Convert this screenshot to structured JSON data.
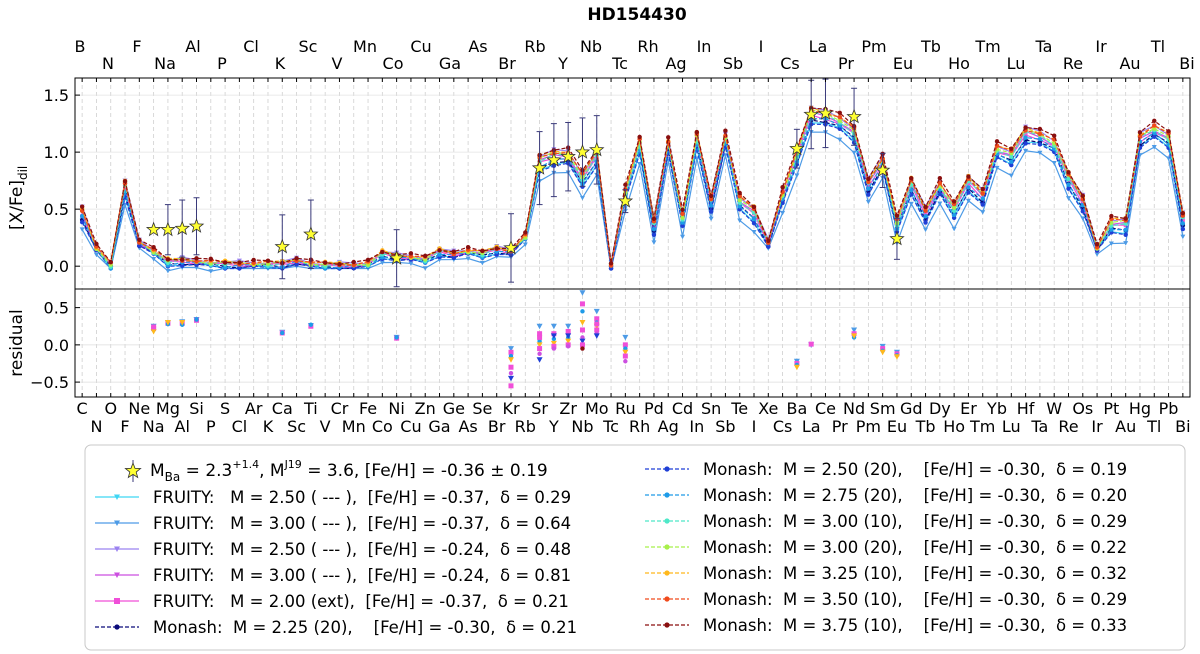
{
  "chart_data": {
    "type": "line",
    "title": "HD154430",
    "top_panel": {
      "ylabel_main": "[X/Fe]",
      "ylabel_sub": "dil",
      "ylim": [
        -0.2,
        1.65
      ],
      "yticks": [
        "0.0",
        "0.5",
        "1.0",
        "1.5"
      ]
    },
    "bottom_panel": {
      "ylabel": "residual",
      "ylim": [
        -0.7,
        0.75
      ],
      "yticks": [
        "−0.5",
        "0.0",
        "0.5"
      ]
    },
    "elements": [
      "C",
      "N",
      "O",
      "F",
      "Ne",
      "Na",
      "Mg",
      "Al",
      "Si",
      "P",
      "S",
      "Cl",
      "Ar",
      "K",
      "Ca",
      "Sc",
      "Ti",
      "V",
      "Cr",
      "Mn",
      "Fe",
      "Co",
      "Ni",
      "Cu",
      "Zn",
      "Ga",
      "Ge",
      "As",
      "Se",
      "Br",
      "Kr",
      "Rb",
      "Sr",
      "Y",
      "Zr",
      "Nb",
      "Mo",
      "Tc",
      "Ru",
      "Rh",
      "Pd",
      "Ag",
      "Cd",
      "In",
      "Sn",
      "Sb",
      "Te",
      "I",
      "Xe",
      "Cs",
      "Ba",
      "La",
      "Ce",
      "Pr",
      "Nd",
      "Pm",
      "Sm",
      "Eu",
      "Gd",
      "Tb",
      "Dy",
      "Ho",
      "Er",
      "Tm",
      "Yb",
      "Lu",
      "Hf",
      "Ta",
      "W",
      "Re",
      "Os",
      "Ir",
      "Pt",
      "Au",
      "Hg",
      "Tl",
      "Pb",
      "Bi"
    ],
    "observed": {
      "elements": [
        "Na",
        "Mg",
        "Al",
        "Si",
        "Ca",
        "Ti",
        "Ni",
        "Kr",
        "Sr",
        "Y",
        "Zr",
        "Nb",
        "Mo",
        "Ru",
        "Ba",
        "La",
        "Ce",
        "Nd",
        "Sm",
        "Eu"
      ],
      "values": [
        0.32,
        0.32,
        0.33,
        0.35,
        0.17,
        0.28,
        0.07,
        0.16,
        0.86,
        0.93,
        0.96,
        1.0,
        1.02,
        0.57,
        1.03,
        1.33,
        1.34,
        1.31,
        0.84,
        0.24
      ],
      "errors": [
        0.0,
        0.22,
        0.25,
        0.25,
        0.28,
        0.3,
        0.25,
        0.3,
        0.32,
        0.32,
        0.3,
        0.3,
        0.3,
        0.1,
        0.17,
        0.3,
        0.3,
        0.25,
        0.15,
        0.18
      ]
    },
    "series": [
      {
        "name": "FRUITY:   M = 2.50 ( --- ),  [Fe/H] = -0.37,  δ = 0.29",
        "color": "#3fd6f4",
        "marker": "tri"
      },
      {
        "name": "FRUITY:   M = 3.00 ( --- ),  [Fe/H] = -0.37,  δ = 0.64",
        "color": "#4d9be6",
        "marker": "tri"
      },
      {
        "name": "FRUITY:   M = 2.50 ( --- ),  [Fe/H] = -0.24,  δ = 0.48",
        "color": "#9b82f0",
        "marker": "tri"
      },
      {
        "name": "FRUITY:   M = 3.00 ( --- ),  [Fe/H] = -0.24,  δ = 0.81",
        "color": "#cc4fe0",
        "marker": "tri"
      },
      {
        "name": "FRUITY:   M = 2.00 (ext),  [Fe/H] = -0.37,  δ = 0.21",
        "color": "#f04fd8",
        "marker": "sq"
      },
      {
        "name": "Monash:  M = 2.25 (20),    [Fe/H] = -0.30,  δ = 0.21",
        "color": "#0a0a7a",
        "marker": "dot"
      },
      {
        "name": "Monash:  M = 2.50 (20),    [Fe/H] = -0.30,  δ = 0.19",
        "color": "#1f3fd6",
        "marker": "dot"
      },
      {
        "name": "Monash:  M = 2.75 (20),    [Fe/H] = -0.30,  δ = 0.20",
        "color": "#1e9be8",
        "marker": "dot"
      },
      {
        "name": "Monash:  M = 3.00 (10),    [Fe/H] = -0.30,  δ = 0.29",
        "color": "#4ee8c8",
        "marker": "dot"
      },
      {
        "name": "Monash:  M = 3.00 (20),    [Fe/H] = -0.30,  δ = 0.22",
        "color": "#a8f04a",
        "marker": "dot"
      },
      {
        "name": "Monash:  M = 3.25 (10),    [Fe/H] = -0.30,  δ = 0.32",
        "color": "#ffb81c",
        "marker": "dot"
      },
      {
        "name": "Monash:  M = 3.50 (10),    [Fe/H] = -0.30,  δ = 0.29",
        "color": "#f04a1c",
        "marker": "dot"
      },
      {
        "name": "Monash:  M = 3.75 (10),    [Fe/H] = -0.30,  δ = 0.33",
        "color": "#8a0f0f",
        "marker": "dot"
      }
    ],
    "base_pattern": [
      0.45,
      0.15,
      0.0,
      0.68,
      0.2,
      0.12,
      0.03,
      0.04,
      0.03,
      0.02,
      0.01,
      0.01,
      0.01,
      0.01,
      0.01,
      0.04,
      0.01,
      0.0,
      0.0,
      0.0,
      0.01,
      0.1,
      0.08,
      0.07,
      0.05,
      0.12,
      0.1,
      0.12,
      0.1,
      0.14,
      0.12,
      0.25,
      0.9,
      0.95,
      0.95,
      0.75,
      0.95,
      0.0,
      0.62,
      1.05,
      0.35,
      1.05,
      0.4,
      1.1,
      0.55,
      1.1,
      0.55,
      0.45,
      0.2,
      0.6,
      0.95,
      1.32,
      1.3,
      1.25,
      1.15,
      0.7,
      0.9,
      0.35,
      0.7,
      0.45,
      0.68,
      0.48,
      0.72,
      0.6,
      1.0,
      0.95,
      1.15,
      1.12,
      1.05,
      0.75,
      0.55,
      0.15,
      0.35,
      0.35,
      1.1,
      1.18,
      1.1,
      0.4
    ],
    "residual_points": [
      {
        "el": "Na",
        "v": [
          0.25,
          0.22,
          0.2,
          0.18,
          0.24
        ]
      },
      {
        "el": "Mg",
        "v": [
          0.3,
          0.29,
          0.28,
          0.3
        ]
      },
      {
        "el": "Al",
        "v": [
          0.31,
          0.29,
          0.27,
          0.3
        ]
      },
      {
        "el": "Si",
        "v": [
          0.34,
          0.33,
          0.34
        ]
      },
      {
        "el": "Ca",
        "v": [
          0.17,
          0.16,
          0.16
        ]
      },
      {
        "el": "Ti",
        "v": [
          0.26,
          0.25,
          0.27
        ]
      },
      {
        "el": "Ni",
        "v": [
          0.1,
          0.09,
          0.1
        ]
      },
      {
        "el": "Kr",
        "v": [
          -0.05,
          -0.1,
          -0.15,
          -0.2,
          -0.3,
          -0.38,
          -0.45,
          -0.55
        ]
      },
      {
        "el": "Sr",
        "v": [
          0.25,
          0.15,
          0.05,
          0.0,
          -0.05,
          -0.12,
          -0.2,
          0.1
        ]
      },
      {
        "el": "Y",
        "v": [
          0.25,
          0.15,
          0.08,
          0.02,
          -0.02,
          -0.05,
          0.12
        ]
      },
      {
        "el": "Zr",
        "v": [
          0.25,
          0.18,
          0.1,
          0.05,
          0.0,
          -0.02,
          0.12
        ]
      },
      {
        "el": "Nb",
        "v": [
          0.7,
          0.55,
          0.45,
          0.3,
          0.2,
          0.1,
          0.05,
          0.0,
          -0.05
        ]
      },
      {
        "el": "Mo",
        "v": [
          0.45,
          0.35,
          0.3,
          0.25,
          0.2,
          0.15,
          0.12,
          0.28
        ]
      },
      {
        "el": "Ru",
        "v": [
          0.1,
          0.0,
          -0.05,
          -0.1,
          -0.15,
          -0.22
        ]
      },
      {
        "el": "Ba",
        "v": [
          -0.22,
          -0.25,
          -0.27,
          -0.3
        ]
      },
      {
        "el": "La",
        "v": [
          0.0,
          0.01
        ]
      },
      {
        "el": "Nd",
        "v": [
          0.2,
          0.15,
          0.1,
          0.12
        ]
      },
      {
        "el": "Sm",
        "v": [
          -0.02,
          -0.05,
          -0.08,
          -0.1
        ]
      },
      {
        "el": "Eu",
        "v": [
          -0.1,
          -0.12,
          -0.14,
          -0.16
        ]
      }
    ],
    "legend": {
      "star_entry_text": "M",
      "star_entry_sub1": "Ba",
      "star_entry_mid": " = 2.3",
      "star_entry_sup": "+1.4",
      "star_entry_inf": "−0.7",
      "star_entry_m2": ", M",
      "star_entry_m2_sup": "J19",
      "star_entry_m2_sub": "AGB",
      "star_entry_tail": " = 3.6, [Fe/H] = -0.36 ± 0.19",
      "placement": "bottom, two columns"
    }
  }
}
